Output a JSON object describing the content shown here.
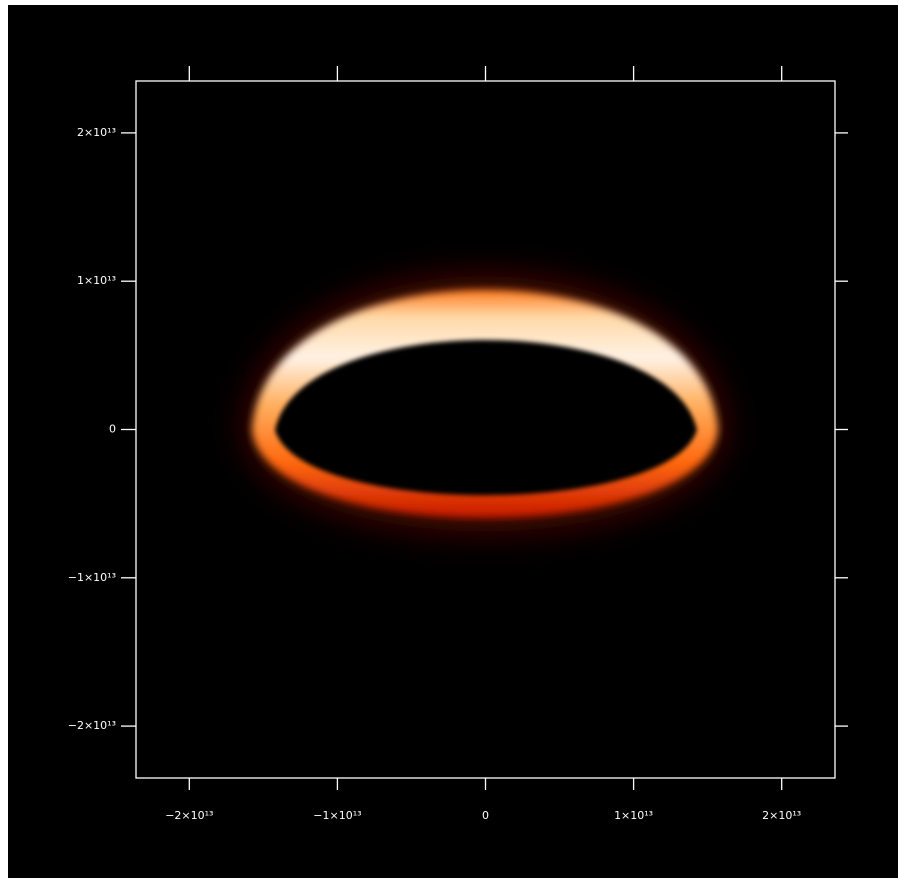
{
  "chart_data": {
    "type": "image",
    "xlim": [
      -23600000000000.0,
      23600000000000.0
    ],
    "ylim": [
      -23500000000000.0,
      23500000000000.0
    ],
    "xticks": [
      {
        "value": -20000000000000.0,
        "label": "−2×10¹³"
      },
      {
        "value": -10000000000000.0,
        "label": "−1×10¹³"
      },
      0,
      {
        "value": 10000000000000.0,
        "label": "1×10¹³"
      },
      {
        "value": 20000000000000.0,
        "label": "2×10¹³"
      }
    ],
    "yticks": [
      {
        "value": -20000000000000.0,
        "label": "−2×10¹³"
      },
      {
        "value": -10000000000000.0,
        "label": "−1×10¹³"
      },
      0,
      {
        "value": 10000000000000.0,
        "label": "1×10¹³"
      },
      {
        "value": 20000000000000.0,
        "label": "2×10¹³"
      }
    ],
    "grid": false
  }
}
